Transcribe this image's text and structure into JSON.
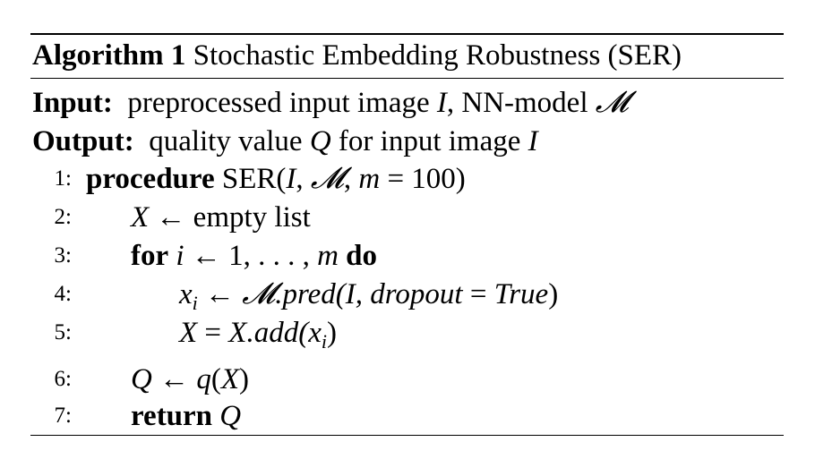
{
  "algorithm": {
    "label": "Algorithm 1",
    "title": "Stochastic Embedding Robustness (SER)"
  },
  "input": {
    "label": "Input:",
    "text_a": "preprocessed input image",
    "var_image": "I",
    "text_b": ", NN-model",
    "var_model": "𝓜"
  },
  "output": {
    "label": "Output:",
    "text_a": "quality value",
    "var_q": "Q",
    "text_b": "for input image",
    "var_image": "I"
  },
  "lines": [
    {
      "num": "1:",
      "kw": "procedure",
      "a": "SER(",
      "b": "I",
      "c": ", ",
      "d": "𝓜",
      "e": ", ",
      "f": "m",
      "g": " = 100)"
    },
    {
      "num": "2:",
      "a": "X",
      "b": " ← empty list"
    },
    {
      "num": "3:",
      "kw": "for",
      "a": "i",
      "b": " ← 1, . . . , ",
      "c": "m",
      "kw2": "do"
    },
    {
      "num": "4:",
      "a": "x",
      "sub": "i",
      "b": " ← ",
      "c": "𝓜",
      "d": ".pred(",
      "e": "I",
      "f": ", dropout",
      "g": " = ",
      "h": "True",
      "i": ")"
    },
    {
      "num": "5:",
      "a": "X",
      "b": " = ",
      "c": "X.add(x",
      "sub": "i",
      "d": ")"
    },
    {
      "num": "6:",
      "a": "Q",
      "b": " ← ",
      "c": "q",
      "d": "(",
      "e": "X",
      "f": ")"
    },
    {
      "num": "7:",
      "kw": "return",
      "a": "Q"
    }
  ]
}
